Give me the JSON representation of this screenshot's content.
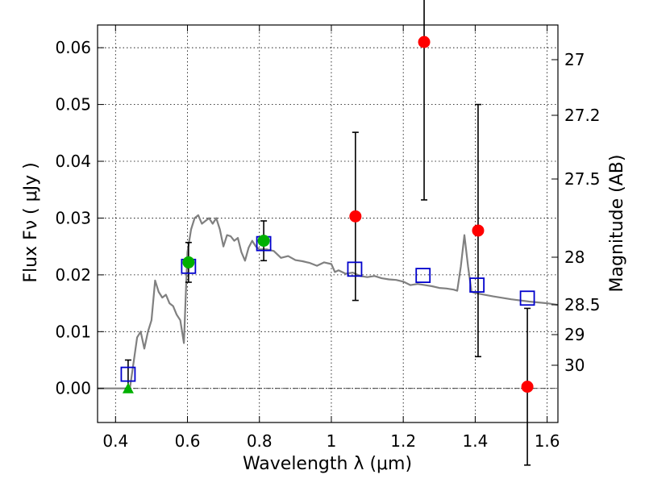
{
  "chart_data": {
    "type": "scatter",
    "xlabel": "Wavelength  λ (μm)",
    "ylabel": "Flux  Fν  ( μJy )",
    "y2label": "Magnitude (AB)",
    "xlim": [
      0.35,
      1.63
    ],
    "ylim": [
      -0.006,
      0.064
    ],
    "x_ticks": [
      0.4,
      0.6,
      0.8,
      1.0,
      1.2,
      1.4,
      1.6
    ],
    "x_tick_labels": [
      "0.4",
      "0.6",
      "0.8",
      "1",
      "1.2",
      "1.4",
      "1.6"
    ],
    "y_ticks": [
      0.0,
      0.01,
      0.02,
      0.03,
      0.04,
      0.05,
      0.06
    ],
    "y_tick_labels": [
      "0.00",
      "0.01",
      "0.02",
      "0.03",
      "0.04",
      "0.05",
      "0.06"
    ],
    "y2_ticks": [
      27,
      27.2,
      27.5,
      28,
      28.5,
      29,
      30
    ],
    "y2_tick_labels": [
      "27",
      "27.2",
      "27.5",
      "28",
      "28.5",
      "29",
      "30"
    ],
    "grid": true,
    "zero_line": true,
    "model_sed": {
      "x": [
        0.35,
        0.4,
        0.44,
        0.45,
        0.46,
        0.47,
        0.48,
        0.49,
        0.5,
        0.51,
        0.52,
        0.53,
        0.54,
        0.55,
        0.56,
        0.57,
        0.58,
        0.59,
        0.6,
        0.61,
        0.62,
        0.63,
        0.64,
        0.65,
        0.66,
        0.67,
        0.68,
        0.69,
        0.7,
        0.71,
        0.72,
        0.73,
        0.74,
        0.75,
        0.76,
        0.77,
        0.78,
        0.79,
        0.8,
        0.82,
        0.84,
        0.86,
        0.88,
        0.9,
        0.92,
        0.94,
        0.96,
        0.98,
        1.0,
        1.01,
        1.02,
        1.04,
        1.06,
        1.08,
        1.1,
        1.12,
        1.14,
        1.16,
        1.18,
        1.2,
        1.22,
        1.24,
        1.26,
        1.28,
        1.3,
        1.32,
        1.34,
        1.35,
        1.36,
        1.37,
        1.38,
        1.39,
        1.4,
        1.45,
        1.5,
        1.55,
        1.6,
        1.63
      ],
      "y": [
        0.0,
        0.0,
        0.0,
        0.0045,
        0.009,
        0.01,
        0.007,
        0.01,
        0.012,
        0.019,
        0.017,
        0.016,
        0.0165,
        0.015,
        0.0145,
        0.013,
        0.012,
        0.008,
        0.024,
        0.028,
        0.03,
        0.0305,
        0.029,
        0.0295,
        0.03,
        0.029,
        0.03,
        0.028,
        0.025,
        0.027,
        0.0268,
        0.026,
        0.0265,
        0.024,
        0.0225,
        0.0248,
        0.026,
        0.025,
        0.0245,
        0.0245,
        0.0242,
        0.023,
        0.0233,
        0.0226,
        0.0224,
        0.0221,
        0.0216,
        0.0222,
        0.0219,
        0.0205,
        0.0208,
        0.0202,
        0.0204,
        0.0198,
        0.0196,
        0.0198,
        0.0194,
        0.0192,
        0.0191,
        0.0188,
        0.0182,
        0.0184,
        0.0182,
        0.018,
        0.0177,
        0.0176,
        0.0174,
        0.0172,
        0.0215,
        0.027,
        0.0215,
        0.017,
        0.0168,
        0.0162,
        0.0157,
        0.0153,
        0.015,
        0.0147
      ]
    },
    "model_points": {
      "x": [
        0.435,
        0.603,
        0.812,
        1.065,
        1.255,
        1.405,
        1.545
      ],
      "y": [
        0.0025,
        0.0215,
        0.0255,
        0.021,
        0.0199,
        0.0182,
        0.0159
      ]
    },
    "detections": {
      "x": [
        0.603,
        0.812
      ],
      "y": [
        0.0222,
        0.026
      ],
      "err": [
        0.0035,
        0.0035
      ]
    },
    "nondetections": {
      "x": [
        1.067,
        1.258,
        1.408,
        1.545
      ],
      "y": [
        0.0303,
        0.061,
        0.0278,
        0.0003
      ],
      "err": [
        0.0148,
        0.0278,
        0.0222,
        0.0138
      ]
    },
    "upper_limit": {
      "x": 0.435,
      "y": 0.0,
      "err_top": 0.005
    },
    "colors": {
      "model": "#808080",
      "model_points": "#0000cc",
      "detections": "#00b000",
      "nondetections": "#ff0000",
      "upper_limit": "#00b000"
    }
  }
}
